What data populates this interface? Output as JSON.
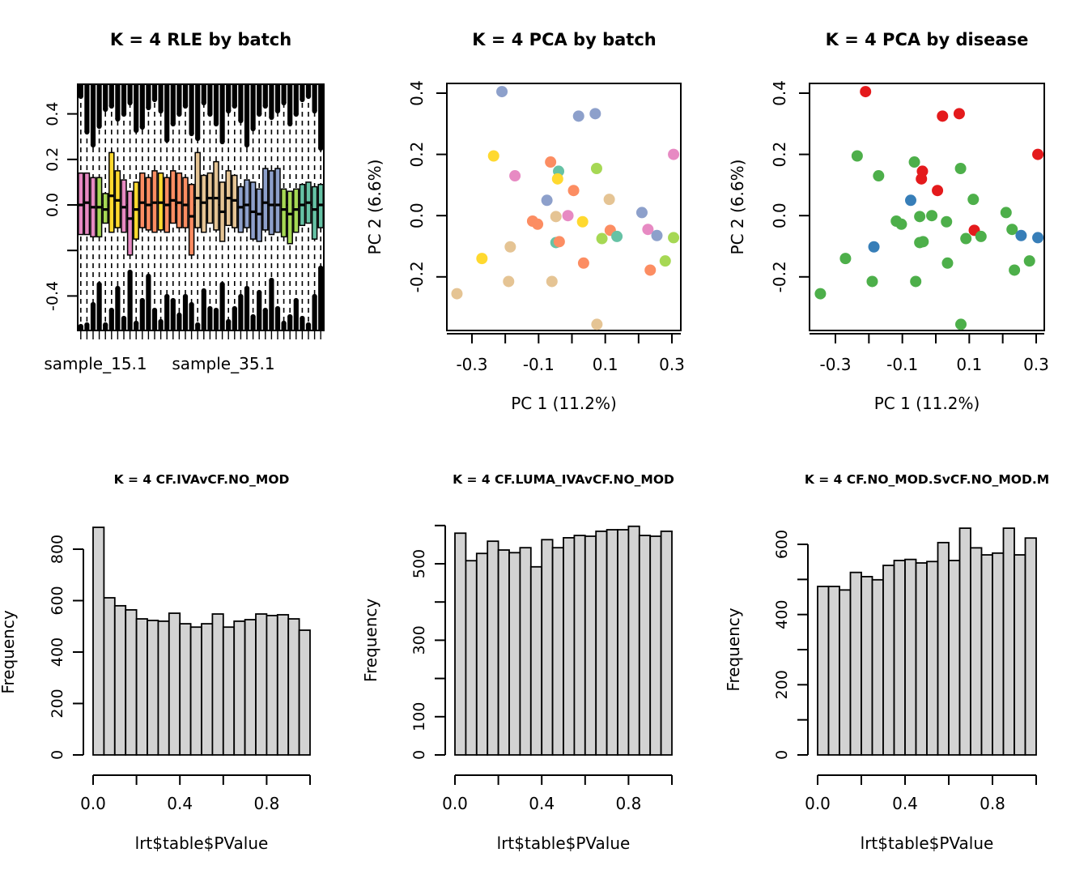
{
  "figure": {
    "background": "#ffffff"
  },
  "palette": {
    "batch": {
      "teal": "#66C2A5",
      "orange": "#FC8D62",
      "blue": "#8DA0CB",
      "pink": "#E78AC3",
      "green": "#A6D854",
      "yellow": "#FFD92F",
      "tan": "#E5C494"
    },
    "disease": {
      "red": "#E41A1C",
      "green": "#4DAF4A",
      "blue": "#377EB8"
    },
    "hist_fill": "#D3D3D3",
    "stroke": "#000000"
  },
  "chart_data": {
    "pca_points": [
      {
        "x": -0.21,
        "y": 0.405,
        "batch": "blue",
        "disease": "red"
      },
      {
        "x": 0.02,
        "y": 0.325,
        "batch": "blue",
        "disease": "red"
      },
      {
        "x": 0.07,
        "y": 0.333,
        "batch": "blue",
        "disease": "red"
      },
      {
        "x": 0.305,
        "y": 0.2,
        "batch": "pink",
        "disease": "red"
      },
      {
        "x": -0.235,
        "y": 0.195,
        "batch": "yellow",
        "disease": "green"
      },
      {
        "x": -0.064,
        "y": 0.175,
        "batch": "orange",
        "disease": "green"
      },
      {
        "x": 0.074,
        "y": 0.154,
        "batch": "green",
        "disease": "green"
      },
      {
        "x": -0.04,
        "y": 0.145,
        "batch": "teal",
        "disease": "red"
      },
      {
        "x": -0.171,
        "y": 0.13,
        "batch": "pink",
        "disease": "green"
      },
      {
        "x": -0.043,
        "y": 0.12,
        "batch": "yellow",
        "disease": "red"
      },
      {
        "x": 0.005,
        "y": 0.082,
        "batch": "orange",
        "disease": "red"
      },
      {
        "x": -0.075,
        "y": 0.05,
        "batch": "blue",
        "disease": "blue"
      },
      {
        "x": 0.112,
        "y": 0.053,
        "batch": "tan",
        "disease": "green"
      },
      {
        "x": -0.048,
        "y": -0.003,
        "batch": "tan",
        "disease": "green"
      },
      {
        "x": -0.012,
        "y": 0.0,
        "batch": "pink",
        "disease": "green"
      },
      {
        "x": 0.21,
        "y": 0.01,
        "batch": "blue",
        "disease": "green"
      },
      {
        "x": 0.032,
        "y": -0.02,
        "batch": "yellow",
        "disease": "green"
      },
      {
        "x": -0.118,
        "y": -0.018,
        "batch": "orange",
        "disease": "green"
      },
      {
        "x": -0.103,
        "y": -0.028,
        "batch": "orange",
        "disease": "green"
      },
      {
        "x": 0.228,
        "y": -0.045,
        "batch": "pink",
        "disease": "green"
      },
      {
        "x": 0.115,
        "y": -0.048,
        "batch": "orange",
        "disease": "red"
      },
      {
        "x": 0.255,
        "y": -0.065,
        "batch": "blue",
        "disease": "blue"
      },
      {
        "x": 0.09,
        "y": -0.075,
        "batch": "green",
        "disease": "green"
      },
      {
        "x": 0.135,
        "y": -0.068,
        "batch": "teal",
        "disease": "green"
      },
      {
        "x": 0.305,
        "y": -0.072,
        "batch": "green",
        "disease": "blue"
      },
      {
        "x": -0.048,
        "y": -0.088,
        "batch": "teal",
        "disease": "green"
      },
      {
        "x": -0.038,
        "y": -0.085,
        "batch": "orange",
        "disease": "green"
      },
      {
        "x": -0.185,
        "y": -0.102,
        "batch": "tan",
        "disease": "blue"
      },
      {
        "x": -0.27,
        "y": -0.14,
        "batch": "yellow",
        "disease": "green"
      },
      {
        "x": 0.28,
        "y": -0.148,
        "batch": "green",
        "disease": "green"
      },
      {
        "x": 0.035,
        "y": -0.155,
        "batch": "orange",
        "disease": "green"
      },
      {
        "x": 0.235,
        "y": -0.178,
        "batch": "orange",
        "disease": "green"
      },
      {
        "x": -0.19,
        "y": -0.215,
        "batch": "tan",
        "disease": "green"
      },
      {
        "x": -0.06,
        "y": -0.215,
        "batch": "tan",
        "disease": "green"
      },
      {
        "x": -0.345,
        "y": -0.255,
        "batch": "tan",
        "disease": "green"
      },
      {
        "x": 0.075,
        "y": -0.355,
        "batch": "tan",
        "disease": "green"
      }
    ],
    "plots": [
      {
        "type": "boxplot",
        "title": "K = 4 RLE by batch",
        "x_tick_labels": [
          "sample_15.1",
          "sample_35.1"
        ],
        "y_ticks": {
          "values": [
            0.4,
            0.2,
            0.0,
            -0.2,
            -0.4
          ],
          "labels": [
            "0.4",
            "0.2",
            "0.0",
            "",
            "-0.4"
          ]
        },
        "zero_line": true,
        "boxes": [
          {
            "c": "pink",
            "q1": -0.13,
            "med": 0.0,
            "q3": 0.14,
            "ot": 18,
            "ob": 8
          },
          {
            "c": "pink",
            "q1": -0.13,
            "med": 0.01,
            "q3": 0.14,
            "ot": 62,
            "ob": 10
          },
          {
            "c": "pink",
            "q1": -0.14,
            "med": -0.01,
            "q3": 0.12,
            "ot": 78,
            "ob": 35
          },
          {
            "c": "green",
            "q1": -0.14,
            "med": -0.01,
            "q3": 0.12,
            "ot": 55,
            "ob": 60
          },
          {
            "c": "green",
            "q1": -0.08,
            "med": -0.02,
            "q3": 0.05,
            "ot": 34,
            "ob": 10
          },
          {
            "c": "yellow",
            "q1": -0.12,
            "med": 0.04,
            "q3": 0.23,
            "ot": 30,
            "ob": 28
          },
          {
            "c": "yellow",
            "q1": -0.1,
            "med": 0.02,
            "q3": 0.15,
            "ot": 46,
            "ob": 55
          },
          {
            "c": "pink",
            "q1": -0.12,
            "med": -0.01,
            "q3": 0.11,
            "ot": 40,
            "ob": 18
          },
          {
            "c": "pink",
            "q1": -0.22,
            "med": -0.06,
            "q3": 0.06,
            "ot": 26,
            "ob": 75
          },
          {
            "c": "yellow",
            "q1": -0.15,
            "med": -0.02,
            "q3": 0.1,
            "ot": 60,
            "ob": 12
          },
          {
            "c": "orange",
            "q1": -0.1,
            "med": 0.01,
            "q3": 0.14,
            "ot": 56,
            "ob": 40
          },
          {
            "c": "orange",
            "q1": -0.11,
            "med": 0.0,
            "q3": 0.12,
            "ot": 32,
            "ob": 70
          },
          {
            "c": "orange",
            "q1": -0.12,
            "med": 0.01,
            "q3": 0.15,
            "ot": 22,
            "ob": 28
          },
          {
            "c": "yellow",
            "q1": -0.11,
            "med": 0.01,
            "q3": 0.14,
            "ot": 36,
            "ob": 14
          },
          {
            "c": "orange",
            "q1": -0.12,
            "med": 0.0,
            "q3": 0.12,
            "ot": 72,
            "ob": 45
          },
          {
            "c": "orange",
            "q1": -0.08,
            "med": 0.02,
            "q3": 0.15,
            "ot": 52,
            "ob": 40
          },
          {
            "c": "orange",
            "q1": -0.1,
            "med": 0.01,
            "q3": 0.14,
            "ot": 40,
            "ob": 22
          },
          {
            "c": "orange",
            "q1": -0.1,
            "med": 0.0,
            "q3": 0.12,
            "ot": 30,
            "ob": 45
          },
          {
            "c": "orange",
            "q1": -0.22,
            "med": -0.05,
            "q3": 0.09,
            "ot": 64,
            "ob": 35
          },
          {
            "c": "tan",
            "q1": -0.1,
            "med": 0.03,
            "q3": 0.23,
            "ot": 70,
            "ob": 10
          },
          {
            "c": "tan",
            "q1": -0.12,
            "med": 0.01,
            "q3": 0.13,
            "ot": 26,
            "ob": 52
          },
          {
            "c": "tan",
            "q1": -0.08,
            "med": 0.03,
            "q3": 0.14,
            "ot": 40,
            "ob": 30
          },
          {
            "c": "tan",
            "q1": -0.11,
            "med": 0.03,
            "q3": 0.19,
            "ot": 52,
            "ob": 28
          },
          {
            "c": "tan",
            "q1": -0.16,
            "med": -0.03,
            "q3": 0.1,
            "ot": 74,
            "ob": 60
          },
          {
            "c": "tan",
            "q1": -0.09,
            "med": 0.03,
            "q3": 0.15,
            "ot": 36,
            "ob": 14
          },
          {
            "c": "tan",
            "q1": -0.1,
            "med": 0.02,
            "q3": 0.13,
            "ot": 30,
            "ob": 30
          },
          {
            "c": "blue",
            "q1": -0.12,
            "med": -0.01,
            "q3": 0.08,
            "ot": 48,
            "ob": 45
          },
          {
            "c": "blue",
            "q1": -0.1,
            "med": 0.0,
            "q3": 0.11,
            "ot": 78,
            "ob": 55
          },
          {
            "c": "blue",
            "q1": -0.15,
            "med": -0.03,
            "q3": 0.1,
            "ot": 58,
            "ob": 20
          },
          {
            "c": "blue",
            "q1": -0.16,
            "med": -0.04,
            "q3": 0.07,
            "ot": 40,
            "ob": 50
          },
          {
            "c": "blue",
            "q1": -0.11,
            "med": 0.01,
            "q3": 0.16,
            "ot": 30,
            "ob": 28
          },
          {
            "c": "blue",
            "q1": -0.13,
            "med": 0.0,
            "q3": 0.15,
            "ot": 44,
            "ob": 65
          },
          {
            "c": "blue",
            "q1": -0.12,
            "med": 0.0,
            "q3": 0.16,
            "ot": 36,
            "ob": 30
          },
          {
            "c": "green",
            "q1": -0.14,
            "med": -0.02,
            "q3": 0.07,
            "ot": 26,
            "ob": 12
          },
          {
            "c": "green",
            "q1": -0.17,
            "med": -0.04,
            "q3": 0.06,
            "ot": 52,
            "ob": 20
          },
          {
            "c": "green",
            "q1": -0.12,
            "med": -0.02,
            "q3": 0.07,
            "ot": 40,
            "ob": 40
          },
          {
            "c": "teal",
            "q1": -0.09,
            "med": 0.0,
            "q3": 0.09,
            "ot": 22,
            "ob": 18
          },
          {
            "c": "teal",
            "q1": -0.08,
            "med": 0.01,
            "q3": 0.1,
            "ot": 18,
            "ob": 10
          },
          {
            "c": "teal",
            "q1": -0.15,
            "med": -0.02,
            "q3": 0.08,
            "ot": 36,
            "ob": 45
          },
          {
            "c": "teal",
            "q1": -0.1,
            "med": 0.0,
            "q3": 0.09,
            "ot": 82,
            "ob": 80
          }
        ]
      },
      {
        "type": "scatter",
        "title": "K = 4 PCA by batch",
        "xlabel": "PC 1 (11.2%)",
        "ylabel": "PC 2 (6.6%)",
        "color_key": "batch",
        "x_ticks": {
          "values": [
            -0.3,
            -0.2,
            -0.1,
            0,
            0.1,
            0.2,
            0.3
          ],
          "labels": [
            "-0.3",
            "",
            "-0.1",
            "",
            "0.1",
            "",
            "0.3"
          ]
        },
        "y_ticks": {
          "values": [
            0.4,
            0.2,
            0,
            -0.2
          ],
          "labels": [
            "0.4",
            "0.2",
            "0.0",
            "-0.2"
          ]
        }
      },
      {
        "type": "scatter",
        "title": "K = 4 PCA by disease",
        "xlabel": "PC 1 (11.2%)",
        "ylabel": "PC 2 (6.6%)",
        "color_key": "disease",
        "x_ticks": {
          "values": [
            -0.3,
            -0.2,
            -0.1,
            0,
            0.1,
            0.2,
            0.3
          ],
          "labels": [
            "-0.3",
            "",
            "-0.1",
            "",
            "0.1",
            "",
            "0.3"
          ]
        },
        "y_ticks": {
          "values": [
            0.4,
            0.2,
            0,
            -0.2
          ],
          "labels": [
            "0.4",
            "0.2",
            "0.0",
            "-0.2"
          ]
        }
      },
      {
        "type": "histogram",
        "title": "K = 4 CF.IVAvCF.NO_MOD",
        "xlabel": "lrt$table$PValue",
        "ylabel": "Frequency",
        "bin_start": 0,
        "bin_width": 0.05,
        "counts": [
          885,
          611,
          580,
          564,
          529,
          523,
          520,
          551,
          510,
          497,
          510,
          548,
          497,
          520,
          526,
          548,
          542,
          545,
          529,
          485
        ],
        "y_ticks": {
          "values": [
            0,
            200,
            400,
            600,
            800
          ],
          "labels": [
            "0",
            "200",
            "400",
            "600",
            "800"
          ]
        },
        "x_ticks": {
          "values": [
            0,
            0.2,
            0.4,
            0.6,
            0.8,
            1.0
          ],
          "labels": [
            "0.0",
            "",
            "0.4",
            "",
            "0.8",
            ""
          ]
        }
      },
      {
        "type": "histogram",
        "title": "K = 4 CF.LUMA_IVAvCF.NO_MOD",
        "xlabel": "lrt$table$PValue",
        "ylabel": "Frequency",
        "bin_start": 0,
        "bin_width": 0.05,
        "counts": [
          580,
          508,
          527,
          559,
          536,
          529,
          542,
          492,
          563,
          542,
          568,
          574,
          572,
          585,
          589,
          589,
          598,
          574,
          572,
          585
        ],
        "y_ticks": {
          "values": [
            0,
            100,
            200,
            300,
            400,
            500,
            600
          ],
          "labels": [
            "0",
            "100",
            "",
            "300",
            "",
            "500",
            ""
          ]
        },
        "x_ticks": {
          "values": [
            0,
            0.2,
            0.4,
            0.6,
            0.8,
            1.0
          ],
          "labels": [
            "0.0",
            "",
            "0.4",
            "",
            "0.8",
            ""
          ]
        }
      },
      {
        "type": "histogram",
        "title": "K = 4 CF.NO_MOD.SvCF.NO_MOD.M",
        "xlabel": "lrt$table$PValue",
        "ylabel": "Frequency",
        "bin_start": 0,
        "bin_width": 0.05,
        "counts": [
          480,
          480,
          470,
          520,
          508,
          499,
          540,
          554,
          557,
          547,
          551,
          605,
          554,
          646,
          590,
          570,
          575,
          646,
          570,
          618
        ],
        "y_ticks": {
          "values": [
            0,
            100,
            200,
            300,
            400,
            500,
            600
          ],
          "labels": [
            "0",
            "",
            "200",
            "",
            "400",
            "",
            "600"
          ]
        },
        "x_ticks": {
          "values": [
            0,
            0.2,
            0.4,
            0.6,
            0.8,
            1.0
          ],
          "labels": [
            "0.0",
            "",
            "0.4",
            "",
            "0.8",
            ""
          ]
        }
      }
    ]
  }
}
